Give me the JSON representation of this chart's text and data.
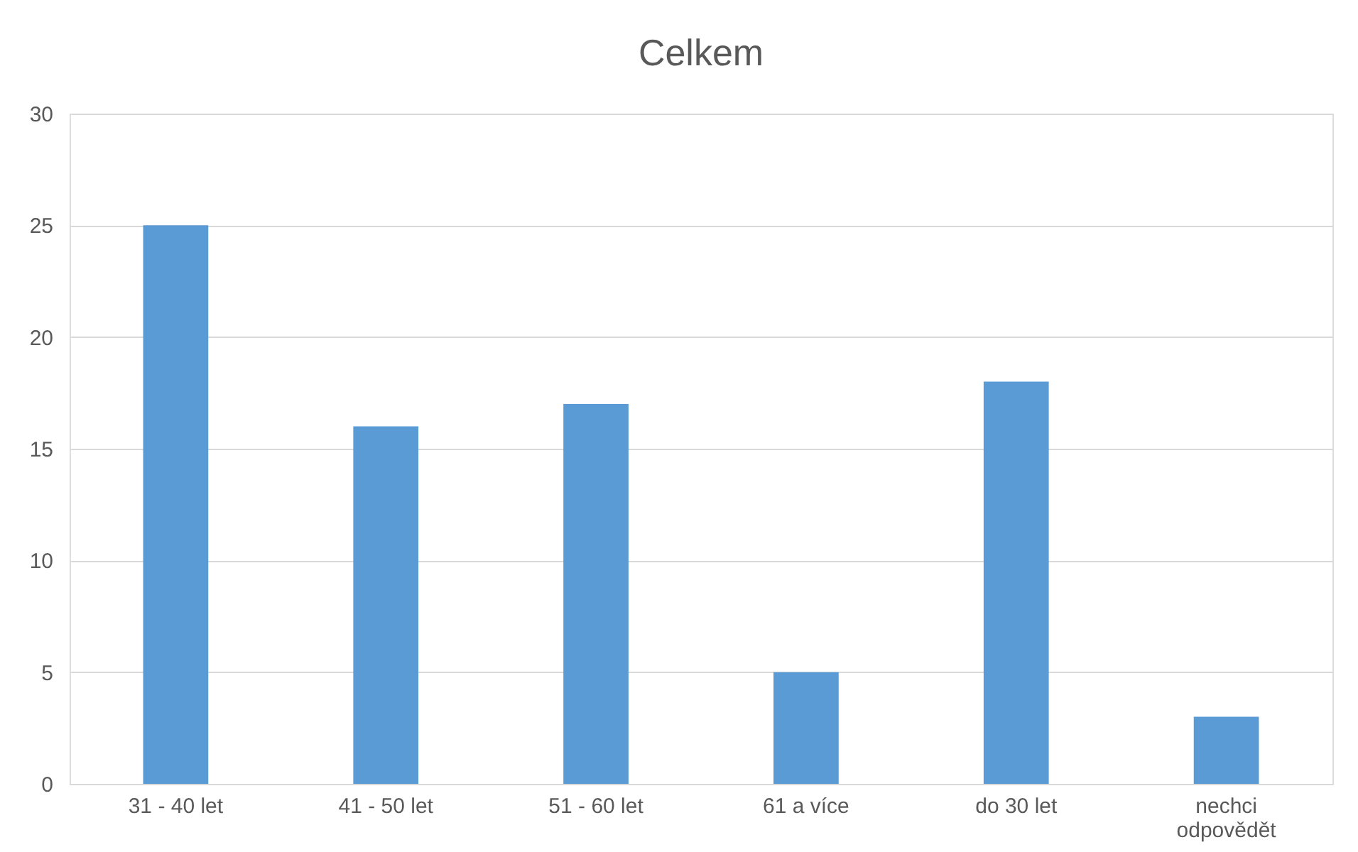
{
  "chart_data": {
    "type": "bar",
    "title": "Celkem",
    "categories": [
      "31 - 40 let",
      "41 - 50 let",
      "51 - 60 let",
      "61 a více",
      "do 30 let",
      "nechci odpovědět"
    ],
    "values": [
      25,
      16,
      17,
      5,
      18,
      3
    ],
    "color": "#5b9bd5",
    "ylim": [
      0,
      30
    ],
    "yticks": [
      0,
      5,
      10,
      15,
      20,
      25,
      30
    ],
    "grid": "y"
  }
}
